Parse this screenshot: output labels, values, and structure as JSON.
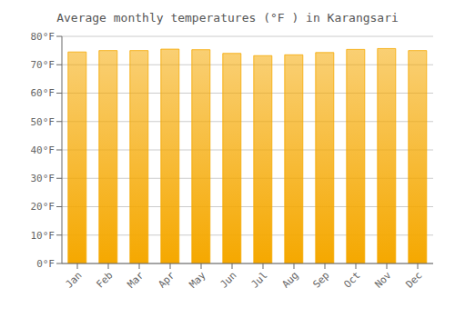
{
  "chart_data": {
    "type": "bar",
    "title": "Average monthly temperatures (°F ) in Karangsari",
    "categories": [
      "Jan",
      "Feb",
      "Mar",
      "Apr",
      "May",
      "Jun",
      "Jul",
      "Aug",
      "Sep",
      "Oct",
      "Nov",
      "Dec"
    ],
    "values": [
      74.5,
      75.0,
      75.0,
      75.5,
      75.3,
      74.0,
      73.2,
      73.5,
      74.3,
      75.4,
      75.7,
      75.0
    ],
    "color": "#F5A800",
    "ylim": [
      0,
      80
    ],
    "yticks": [
      {
        "value": 0,
        "label": "0°F"
      },
      {
        "value": 10,
        "label": "10°F"
      },
      {
        "value": 20,
        "label": "20°F"
      },
      {
        "value": 30,
        "label": "30°F"
      },
      {
        "value": 40,
        "label": "40°F"
      },
      {
        "value": 50,
        "label": "50°F"
      },
      {
        "value": 60,
        "label": "60°F"
      },
      {
        "value": 70,
        "label": "70°F"
      },
      {
        "value": 80,
        "label": "80°F"
      }
    ],
    "grid": true
  }
}
